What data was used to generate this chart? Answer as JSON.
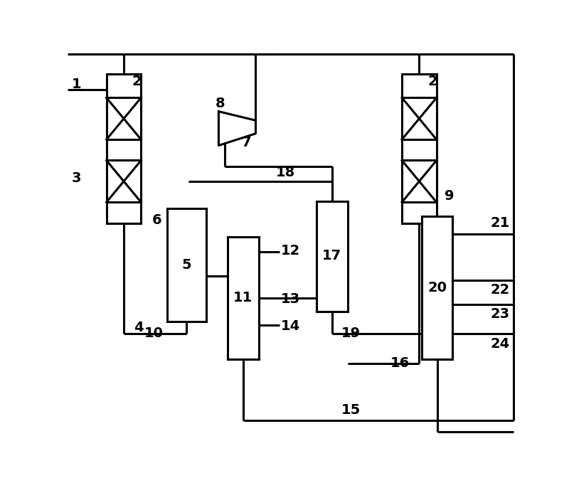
{
  "bg_color": "#ffffff",
  "lc": "#000000",
  "lw": 2.2,
  "fs": 14
}
